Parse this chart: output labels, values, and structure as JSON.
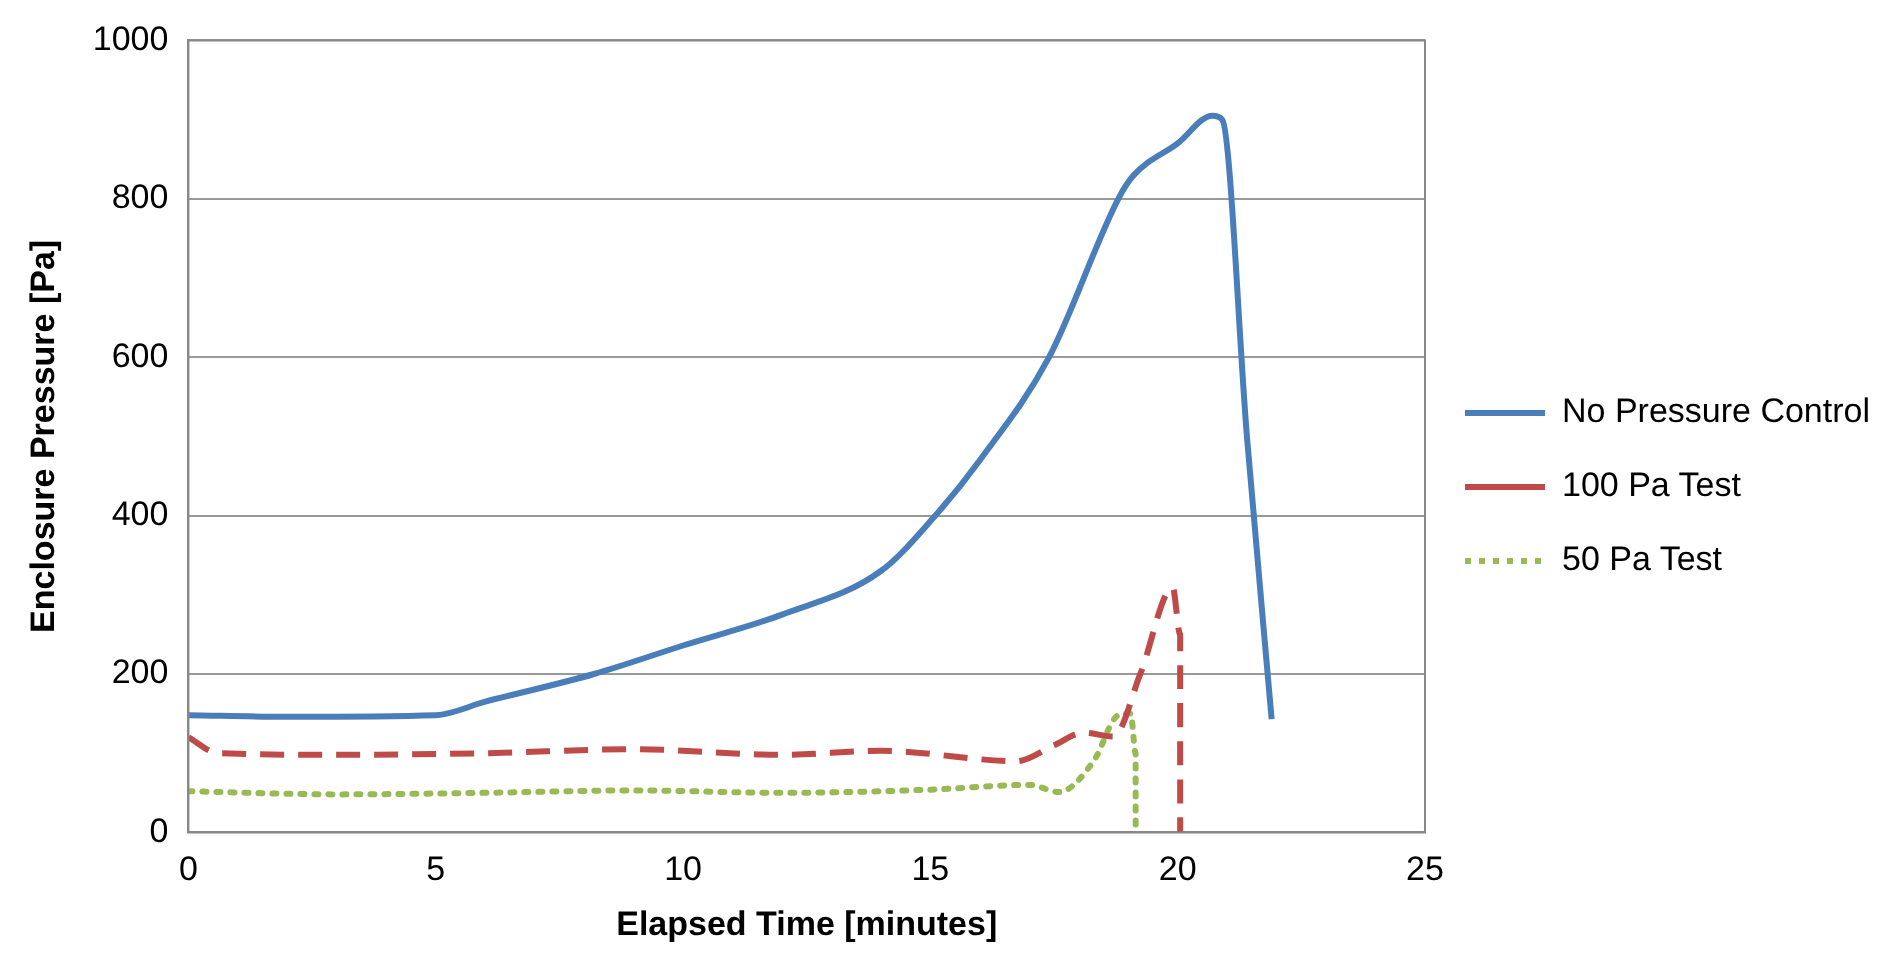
{
  "chart_data": {
    "type": "line",
    "xlabel": "Elapsed Time [minutes]",
    "ylabel": "Enclosure Pressure [Pa]",
    "xlim": [
      0,
      25
    ],
    "xticks": [
      0,
      5,
      10,
      15,
      20,
      25
    ],
    "ylim": [
      0,
      1000
    ],
    "yticks": [
      0,
      200,
      400,
      600,
      800,
      1000
    ],
    "grid": "y",
    "legend": "right",
    "marker": "none",
    "series": [
      {
        "name": "No Pressure Control",
        "color": "#4a7ebb",
        "line_style": "solid",
        "x": [
          0,
          2,
          5,
          6,
          8.2,
          10,
          12,
          14,
          15.1,
          16,
          17.4,
          18.8,
          19.1,
          20,
          20.7,
          20.9,
          21.4,
          21.9
        ],
        "values": [
          148,
          146,
          148,
          165,
          200,
          236,
          275,
          330,
          400,
          470,
          600,
          800,
          829,
          870,
          905,
          900,
          500,
          143
        ]
      },
      {
        "name": "100 Pa Test",
        "color": "#be4b48",
        "line_style": "dashed",
        "x": [
          0,
          0.6,
          3,
          6,
          9,
          12,
          14,
          16.75,
          17.5,
          18.1,
          18.7,
          19.25,
          19.9,
          20.05,
          20.05
        ],
        "values": [
          120,
          100,
          98,
          100,
          105,
          98,
          103,
          90,
          110,
          126,
          121,
          201,
          309,
          250,
          0
        ]
      },
      {
        "name": "50 Pa Test",
        "color": "#98b954",
        "line_style": "dotted",
        "x": [
          0,
          3,
          6,
          9,
          12,
          15,
          17,
          17.6,
          18.3,
          18.8,
          19.05,
          19.15,
          19.15
        ],
        "values": [
          52,
          48,
          50,
          53,
          50,
          54,
          60,
          51,
          90,
          148,
          150,
          100,
          0
        ]
      }
    ]
  }
}
